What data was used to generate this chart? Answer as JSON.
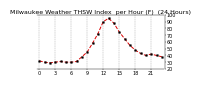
{
  "title": "Milwaukee Weather THSW Index  per Hour (F)  (24 Hours)",
  "hours": [
    0,
    1,
    2,
    3,
    4,
    5,
    6,
    7,
    8,
    9,
    10,
    11,
    12,
    13,
    14,
    15,
    16,
    17,
    18,
    19,
    20,
    21,
    22,
    23
  ],
  "thsw": [
    32,
    30,
    29,
    30,
    31,
    30,
    30,
    31,
    38,
    45,
    58,
    72,
    90,
    95,
    88,
    75,
    65,
    55,
    48,
    43,
    40,
    42,
    40,
    38
  ],
  "line_color": "#dd0000",
  "marker_color": "#000000",
  "background_color": "#ffffff",
  "grid_color": "#888888",
  "title_color": "#000000",
  "ylim": [
    20,
    100
  ],
  "xlim": [
    -0.5,
    23.5
  ],
  "yticks": [
    20,
    30,
    40,
    50,
    60,
    70,
    80,
    90,
    100
  ],
  "xticks": [
    0,
    3,
    6,
    9,
    12,
    15,
    18,
    21
  ],
  "title_fontsize": 4.5,
  "tick_fontsize": 3.5
}
